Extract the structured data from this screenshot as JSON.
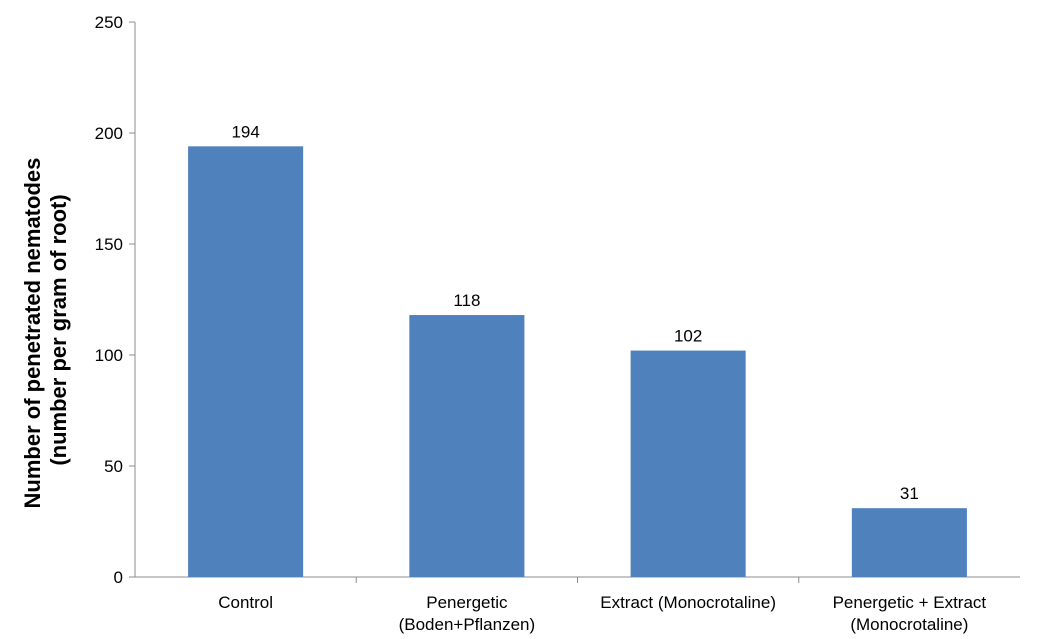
{
  "chart_data": {
    "type": "bar",
    "title": "",
    "xlabel": "",
    "ylabel": [
      "Number of penetrated nematodes",
      "(number per gram of root)"
    ],
    "ylim": [
      0,
      250
    ],
    "yticks": [
      0,
      50,
      100,
      150,
      200,
      250
    ],
    "grid": false,
    "categories": [
      [
        "Control"
      ],
      [
        "Penergetic",
        "(Boden+Pflanzen)"
      ],
      [
        "Extract (Monocrotaline)"
      ],
      [
        "Penergetic + Extract",
        "(Monocrotaline)"
      ]
    ],
    "series": [
      {
        "values": [
          194,
          118,
          102,
          31
        ],
        "data_labels": [
          "194",
          "118",
          "102",
          "31"
        ]
      }
    ],
    "bar_color": "#4F81BD"
  }
}
